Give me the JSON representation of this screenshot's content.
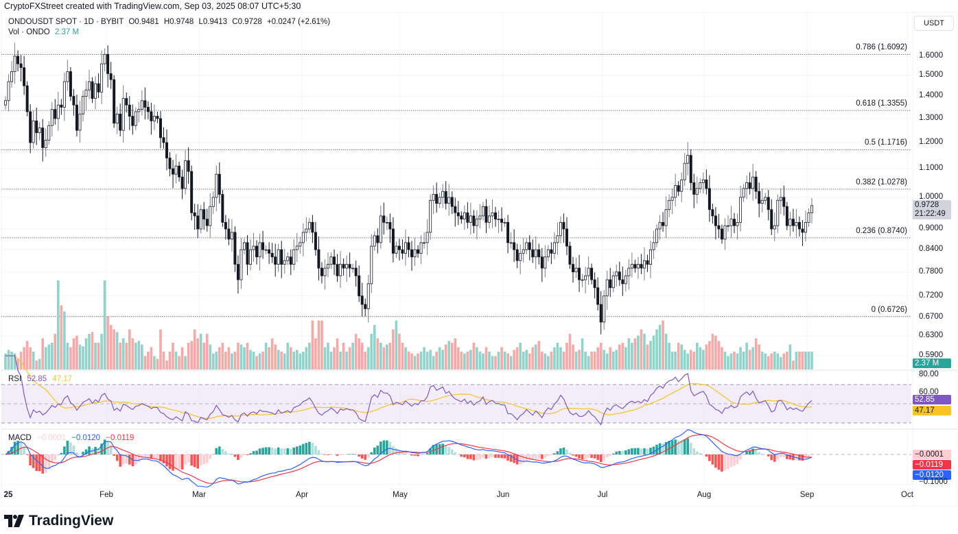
{
  "credit": "CryptoFXStreet created with TradingView.com, Sep 03, 2025 08:07 UTC+5:30",
  "header": {
    "symbol": "ONDOUSDT SPOT · 1D · BYBIT",
    "open": "O0.9481",
    "high": "H0.9748",
    "low": "L0.9413",
    "close": "C0.9728",
    "change": "+0.0247 (+2.61%)",
    "volume_label": "Vol · ONDO",
    "volume_value": "2.37 M"
  },
  "currency_button": "USDT",
  "price_axis": {
    "ticks": [
      "1.6000",
      "1.5000",
      "1.4000",
      "1.3000",
      "1.2000",
      "1.1000",
      "1.0000",
      "0.9000",
      "0.8400",
      "0.7800",
      "0.7200",
      "0.6700",
      "0.6300",
      "0.5900"
    ],
    "last_price_tag": "0.9728",
    "countdown": "21:22:49",
    "volume_tag": "2.37 M"
  },
  "rsi": {
    "label": "RSI",
    "value": "52.85",
    "ma_value": "47.17",
    "ticks": [
      "80.00",
      "60.00"
    ]
  },
  "macd": {
    "label": "MACD",
    "histogram": "−0.0001",
    "macd": "−0.0120",
    "signal": "−0.0119",
    "tick": "−0.1000"
  },
  "time_axis": [
    "25",
    "Feb",
    "Mar",
    "Apr",
    "May",
    "Jun",
    "Jul",
    "Aug",
    "Sep",
    "Oct"
  ],
  "logo_text": "TradingView",
  "colors": {
    "up_volume": "#8fd3cb",
    "down_volume": "#f7a9a7",
    "rsi_line": "#7e57c2",
    "rsi_ma": "#f7c325",
    "rsi_band": "#ede7f6",
    "macd_line": "#2962ff",
    "signal_line": "#f23645",
    "hist_up_strong": "#26a69a",
    "hist_up_weak": "#b2dfdb",
    "hist_down_strong": "#ff5252",
    "hist_down_weak": "#ffcdd2",
    "price_tag_bg": "#d1d4dc",
    "volume_tag_bg": "#26a69a"
  },
  "chart_data": {
    "type": "candlestick",
    "title": "ONDOUSDT SPOT · 1D · BYBIT",
    "x_range": [
      "2025-01-01",
      "2025-09-03"
    ],
    "ylim": [
      0.57,
      1.68
    ],
    "y_scale": "log",
    "fibonacci_levels": [
      {
        "label": "0.786 (1.6092)",
        "price": 1.6092
      },
      {
        "label": "0.618 (1.3355)",
        "price": 1.3355
      },
      {
        "label": "0.5 (1.1716)",
        "price": 1.1716
      },
      {
        "label": "0.382 (1.0278)",
        "price": 1.0278
      },
      {
        "label": "0.236 (0.8740)",
        "price": 0.874
      },
      {
        "label": "0 (0.6726)",
        "price": 0.6726
      }
    ],
    "closes": [
      1.38,
      1.47,
      1.52,
      1.6,
      1.56,
      1.54,
      1.45,
      1.33,
      1.2,
      1.29,
      1.24,
      1.26,
      1.18,
      1.21,
      1.27,
      1.34,
      1.3,
      1.36,
      1.35,
      1.47,
      1.52,
      1.4,
      1.36,
      1.25,
      1.32,
      1.4,
      1.43,
      1.47,
      1.39,
      1.46,
      1.42,
      1.56,
      1.61,
      1.51,
      1.48,
      1.28,
      1.32,
      1.25,
      1.39,
      1.36,
      1.31,
      1.27,
      1.33,
      1.34,
      1.38,
      1.35,
      1.33,
      1.29,
      1.31,
      1.3,
      1.22,
      1.2,
      1.14,
      1.1,
      1.08,
      1.11,
      1.07,
      1.03,
      1.13,
      1.09,
      0.95,
      0.94,
      0.9,
      0.96,
      0.93,
      0.91,
      0.97,
      1.0,
      1.08,
      1.01,
      0.92,
      0.9,
      0.87,
      0.89,
      0.8,
      0.76,
      0.84,
      0.86,
      0.8,
      0.84,
      0.85,
      0.82,
      0.86,
      0.84,
      0.84,
      0.83,
      0.82,
      0.8,
      0.84,
      0.8,
      0.81,
      0.82,
      0.8,
      0.84,
      0.85,
      0.86,
      0.89,
      0.9,
      0.92,
      0.89,
      0.84,
      0.79,
      0.77,
      0.79,
      0.8,
      0.82,
      0.8,
      0.77,
      0.8,
      0.79,
      0.8,
      0.79,
      0.79,
      0.77,
      0.72,
      0.7,
      0.69,
      0.75,
      0.85,
      0.88,
      0.86,
      0.94,
      0.92,
      0.92,
      0.9,
      0.83,
      0.85,
      0.84,
      0.83,
      0.86,
      0.84,
      0.82,
      0.84,
      0.83,
      0.86,
      0.86,
      0.89,
      0.99,
      1.01,
      0.98,
      1.0,
      1.02,
      0.98,
      1.0,
      0.97,
      0.95,
      0.94,
      0.93,
      0.95,
      0.92,
      0.94,
      0.91,
      0.93,
      0.94,
      0.97,
      0.92,
      0.94,
      0.95,
      0.93,
      0.93,
      0.92,
      0.92,
      0.86,
      0.86,
      0.84,
      0.81,
      0.83,
      0.84,
      0.86,
      0.84,
      0.82,
      0.84,
      0.82,
      0.79,
      0.82,
      0.84,
      0.83,
      0.86,
      0.88,
      0.92,
      0.9,
      0.85,
      0.8,
      0.78,
      0.79,
      0.76,
      0.76,
      0.77,
      0.79,
      0.76,
      0.74,
      0.7,
      0.66,
      0.72,
      0.76,
      0.74,
      0.77,
      0.78,
      0.76,
      0.75,
      0.77,
      0.79,
      0.8,
      0.79,
      0.8,
      0.79,
      0.81,
      0.8,
      0.84,
      0.86,
      0.9,
      0.92,
      0.91,
      0.96,
      0.99,
      1.0,
      1.04,
      1.02,
      1.06,
      1.12,
      1.15,
      1.05,
      1.01,
      1.03,
      1.05,
      1.06,
      1.03,
      0.96,
      0.94,
      0.91,
      0.9,
      0.87,
      0.91,
      0.91,
      0.93,
      0.91,
      0.92,
      1.0,
      1.03,
      1.05,
      1.03,
      1.07,
      1.02,
      0.98,
      0.99,
      1.0,
      0.96,
      0.9,
      0.91,
      0.99,
      1.0,
      0.97,
      0.91,
      0.93,
      0.91,
      0.92,
      0.9,
      0.89,
      0.92,
      0.95,
      0.973
    ],
    "volume_relative": [
      0.18,
      0.22,
      0.2,
      0.18,
      0.12,
      0.2,
      0.25,
      0.32,
      0.25,
      0.2,
      0.1,
      0.12,
      0.35,
      0.25,
      0.28,
      0.3,
      0.4,
      1.0,
      0.72,
      0.65,
      0.3,
      0.25,
      0.35,
      0.38,
      0.28,
      0.26,
      0.35,
      0.4,
      0.42,
      0.3,
      0.3,
      0.4,
      1.0,
      0.6,
      0.5,
      0.45,
      0.42,
      0.3,
      0.35,
      0.3,
      0.45,
      0.35,
      0.3,
      0.32,
      0.28,
      0.15,
      0.2,
      0.25,
      0.15,
      0.12,
      0.45,
      0.2,
      0.1,
      0.2,
      0.3,
      0.2,
      0.15,
      0.25,
      0.15,
      0.3,
      0.32,
      0.45,
      0.35,
      0.4,
      0.3,
      0.4,
      0.28,
      0.18,
      0.2,
      0.25,
      0.3,
      0.2,
      0.25,
      0.18,
      0.2,
      0.3,
      0.28,
      0.25,
      0.3,
      0.22,
      0.2,
      0.15,
      0.18,
      0.2,
      0.3,
      0.25,
      0.35,
      0.28,
      0.22,
      0.2,
      0.18,
      0.3,
      0.25,
      0.2,
      0.22,
      0.18,
      0.2,
      0.25,
      0.3,
      0.55,
      0.35,
      0.55,
      0.55,
      0.25,
      0.3,
      0.2,
      0.25,
      0.35,
      0.2,
      0.3,
      0.2,
      0.25,
      0.3,
      0.4,
      0.35,
      0.3,
      0.2,
      0.25,
      0.4,
      0.5,
      0.35,
      0.3,
      0.25,
      0.28,
      0.3,
      0.45,
      0.55,
      0.4,
      0.3,
      0.25,
      0.2,
      0.18,
      0.15,
      0.18,
      0.2,
      0.25,
      0.2,
      0.22,
      0.15,
      0.2,
      0.25,
      0.22,
      0.28,
      0.32,
      0.3,
      0.35,
      0.25,
      0.2,
      0.18,
      0.2,
      0.22,
      0.3,
      0.25,
      0.2,
      0.18,
      0.25,
      0.2,
      0.15,
      0.15,
      0.2,
      0.25,
      0.2,
      0.18,
      0.15,
      0.22,
      0.25,
      0.3,
      0.2,
      0.22,
      0.18,
      0.25,
      0.28,
      0.32,
      0.2,
      0.18,
      0.15,
      0.2,
      0.25,
      0.3,
      0.25,
      0.2,
      0.3,
      0.4,
      0.28,
      0.2,
      0.22,
      0.35,
      0.2,
      0.15,
      0.2,
      0.2,
      0.25,
      0.3,
      0.22,
      0.18,
      0.25,
      0.2,
      0.22,
      0.28,
      0.3,
      0.25,
      0.35,
      0.3,
      0.35,
      0.38,
      0.45,
      0.4,
      0.28,
      0.32,
      0.38,
      0.45,
      0.5,
      0.55,
      0.4,
      0.3,
      0.2,
      0.2,
      0.3,
      0.28,
      0.22,
      0.18,
      0.22,
      0.2,
      0.3,
      0.25,
      0.22,
      0.28,
      0.32,
      0.4,
      0.38,
      0.32,
      0.25,
      0.2,
      0.15,
      0.18,
      0.2,
      0.18,
      0.25,
      0.2,
      0.3,
      0.22,
      0.25,
      0.35,
      0.28,
      0.2,
      0.18,
      0.15,
      0.18,
      0.2,
      0.18,
      0.14,
      0.18,
      0.2,
      0.28,
      0.1
    ]
  }
}
